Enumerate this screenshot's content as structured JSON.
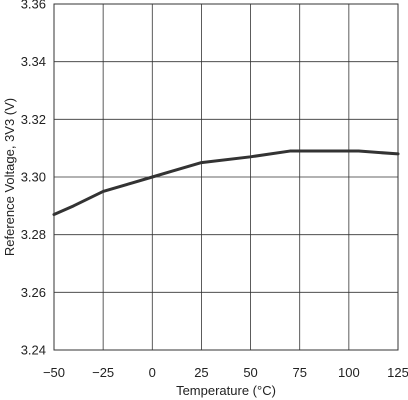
{
  "chart_data": {
    "type": "line",
    "title": "",
    "xlabel": "Temperature (°C)",
    "ylabel": "Reference Voltage, 3V3 (V)",
    "xlim": [
      -50,
      125
    ],
    "ylim": [
      3.24,
      3.36
    ],
    "x_ticks": [
      -50,
      -25,
      0,
      25,
      50,
      75,
      100,
      125
    ],
    "x_tick_labels": [
      "−50",
      "−25",
      "0",
      "25",
      "50",
      "75",
      "100",
      "125"
    ],
    "y_ticks": [
      3.24,
      3.26,
      3.28,
      3.3,
      3.32,
      3.34,
      3.36
    ],
    "y_tick_labels": [
      "3.24",
      "3.26",
      "3.28",
      "3.30",
      "3.32",
      "3.34",
      "3.36"
    ],
    "grid": true,
    "series": [
      {
        "color": "#333333",
        "x": [
          -50,
          -40,
          -25,
          -10,
          0,
          10,
          25,
          50,
          70,
          85,
          105,
          125
        ],
        "y": [
          3.287,
          3.29,
          3.295,
          3.298,
          3.3,
          3.302,
          3.305,
          3.307,
          3.309,
          3.309,
          3.309,
          3.308
        ]
      }
    ]
  }
}
